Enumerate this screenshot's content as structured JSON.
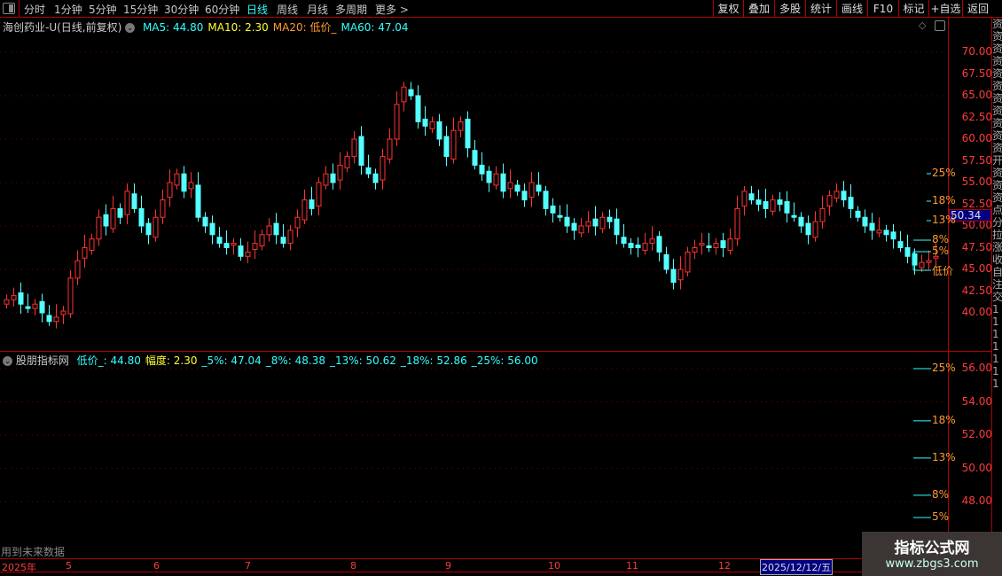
{
  "toolbar": {
    "periods": [
      "分时",
      "1分钟",
      "5分钟",
      "15分钟",
      "30分钟",
      "60分钟",
      "日线",
      "周线",
      "月线",
      "多周期",
      "更多 >"
    ],
    "active_period": "日线",
    "right_buttons": [
      "复权",
      "叠加",
      "多股",
      "统计",
      "画线",
      "F10",
      "标记",
      "+自选",
      "返回"
    ]
  },
  "main": {
    "title": "海创药业-U(日线,前复权)",
    "ma": [
      {
        "label": "MA5: 44.80",
        "color": "#33ffff"
      },
      {
        "label": "MA10: 2.30",
        "color": "#ffff33"
      },
      {
        "label": "MA20: 低价_",
        "color": "#ff9a2e"
      },
      {
        "label": "MA60: 47.04",
        "color": "#33ffff"
      }
    ],
    "y_ticks": [
      "70.00",
      "67.50",
      "65.00",
      "62.50",
      "60.00",
      "57.50",
      "55.00",
      "52.50",
      "50.00",
      "47.50",
      "45.00",
      "42.50",
      "40.00"
    ],
    "current_price": "50.34",
    "level_labels": [
      "25%",
      "18%",
      "13%",
      "8%",
      "5%",
      "低价"
    ]
  },
  "indicator": {
    "name": "股朋指标网",
    "values": [
      {
        "label": "低价_: 44.80",
        "color": "#33ffff"
      },
      {
        "label": "幅度: 2.30",
        "color": "#ffff33"
      },
      {
        "label": "_5%: 47.04",
        "color": "#33ffff"
      },
      {
        "label": "_8%: 48.38",
        "color": "#33ffff"
      },
      {
        "label": "_13%: 50.62",
        "color": "#33ffff"
      },
      {
        "label": "_18%: 52.86",
        "color": "#33ffff"
      },
      {
        "label": "_25%: 56.00",
        "color": "#33ffff"
      }
    ],
    "y_ticks": [
      "56.00",
      "54.00",
      "52.00",
      "50.00",
      "48.00"
    ],
    "level_labels": [
      "25%",
      "18%",
      "13%",
      "8%",
      "5%"
    ],
    "footer_note": "用到未来数据"
  },
  "timeaxis": {
    "labels": [
      "2025年",
      "5",
      "6",
      "7",
      "8",
      "9",
      "10",
      "11",
      "12"
    ],
    "cursor_date": "2025/12/12/五"
  },
  "watermark": {
    "title": "指标公式网",
    "url": "www.zbgs3.com"
  },
  "chart_data": {
    "type": "candlestick",
    "y_range": [
      37.5,
      72
    ],
    "closes": [
      41.5,
      42,
      41,
      40.5,
      41,
      40,
      39,
      39.5,
      40.2,
      44,
      46,
      47.5,
      48.5,
      51,
      50,
      52,
      51,
      54,
      52,
      50,
      49,
      51,
      53,
      55,
      56,
      54,
      55,
      51,
      50,
      49,
      48,
      47.5,
      48,
      46.5,
      47,
      48,
      49,
      50,
      49,
      48,
      49.5,
      51,
      53,
      52,
      55,
      56,
      55,
      57,
      58,
      60,
      57,
      56,
      55,
      58,
      60,
      64,
      66,
      65,
      62,
      61.5,
      62,
      60,
      58,
      61,
      62,
      59,
      57,
      56,
      55,
      56,
      54,
      55,
      54,
      53,
      55,
      54,
      52,
      51.5,
      51,
      50,
      49.5,
      50,
      50.5,
      50,
      51,
      50.5,
      49,
      48,
      47.5,
      47.5,
      48,
      48.5,
      47,
      45,
      43.5,
      45,
      47,
      47.5,
      48,
      47.5,
      48,
      47.5,
      48.5,
      52,
      54,
      53,
      52.5,
      52,
      53,
      52.5,
      51.5,
      51,
      50,
      49,
      50.5,
      52,
      53.5,
      54,
      53,
      52,
      51,
      50,
      49.5,
      49.5,
      49,
      48.5,
      47.5,
      46.5,
      45.5,
      45.8,
      46,
      46.5
    ],
    "levels": {
      "low": 44.8,
      "5%": 47.04,
      "8%": 48.38,
      "13%": 50.62,
      "18%": 52.86,
      "25%": 56.0
    },
    "up_color": "#ff3232",
    "down_color": "#54ffff"
  }
}
